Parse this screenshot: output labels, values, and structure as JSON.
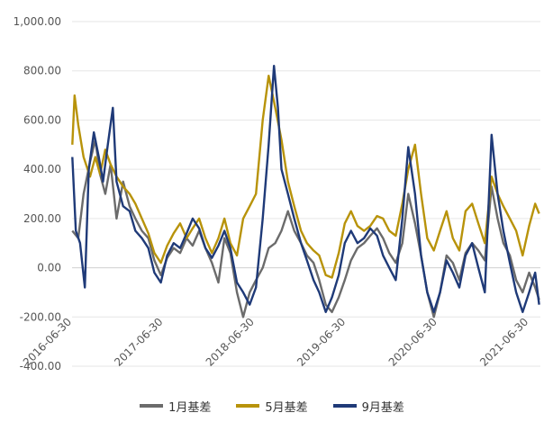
{
  "chart_data": {
    "type": "line",
    "title": "",
    "xlabel": "",
    "ylabel": "",
    "ylim": [
      -400,
      1000
    ],
    "yticks": [
      1000,
      800,
      600,
      400,
      200,
      0,
      -200,
      -400
    ],
    "ytick_labels": [
      "1,000.00",
      "800.00",
      "600.00",
      "400.00",
      "200.00",
      "0.00",
      "-200.00",
      "-400.00"
    ],
    "xlim": [
      "2016-06-30",
      "2021-08-15"
    ],
    "xticks": [
      "2016-06-30",
      "2017-06-30",
      "2018-06-30",
      "2019-06-30",
      "2020-06-30",
      "2021-06-30"
    ],
    "xtick_labels": [
      "2016-06-30",
      "2017-06-30",
      "2018-06-30",
      "2019-06-30",
      "2020-06-30",
      "2021-06-30"
    ],
    "grid": "horizontal",
    "legend_position": "bottom",
    "series": [
      {
        "name": "1月基差",
        "color": "#6b6b6b",
        "points": [
          [
            "2016-07-01",
            150
          ],
          [
            "2016-07-25",
            120
          ],
          [
            "2016-08-15",
            300
          ],
          [
            "2016-09-10",
            430
          ],
          [
            "2016-10-01",
            520
          ],
          [
            "2016-10-20",
            380
          ],
          [
            "2016-11-10",
            300
          ],
          [
            "2016-12-01",
            420
          ],
          [
            "2016-12-25",
            200
          ],
          [
            "2017-01-20",
            350
          ],
          [
            "2017-02-15",
            250
          ],
          [
            "2017-03-10",
            200
          ],
          [
            "2017-04-05",
            150
          ],
          [
            "2017-05-01",
            120
          ],
          [
            "2017-05-25",
            30
          ],
          [
            "2017-06-20",
            -30
          ],
          [
            "2017-07-15",
            40
          ],
          [
            "2017-08-10",
            80
          ],
          [
            "2017-09-05",
            60
          ],
          [
            "2017-10-01",
            120
          ],
          [
            "2017-10-25",
            90
          ],
          [
            "2017-11-20",
            150
          ],
          [
            "2017-12-15",
            80
          ],
          [
            "2018-01-10",
            20
          ],
          [
            "2018-02-05",
            -60
          ],
          [
            "2018-03-01",
            120
          ],
          [
            "2018-03-25",
            60
          ],
          [
            "2018-04-20",
            -100
          ],
          [
            "2018-05-15",
            -200
          ],
          [
            "2018-06-10",
            -100
          ],
          [
            "2018-07-05",
            -50
          ],
          [
            "2018-08-01",
            0
          ],
          [
            "2018-08-25",
            80
          ],
          [
            "2018-09-20",
            100
          ],
          [
            "2018-10-15",
            150
          ],
          [
            "2018-11-10",
            230
          ],
          [
            "2018-12-05",
            150
          ],
          [
            "2019-01-01",
            100
          ],
          [
            "2019-01-25",
            50
          ],
          [
            "2019-02-20",
            20
          ],
          [
            "2019-03-15",
            -50
          ],
          [
            "2019-04-10",
            -150
          ],
          [
            "2019-05-05",
            -180
          ],
          [
            "2019-06-01",
            -120
          ],
          [
            "2019-06-25",
            -50
          ],
          [
            "2019-07-20",
            30
          ],
          [
            "2019-08-15",
            80
          ],
          [
            "2019-09-10",
            100
          ],
          [
            "2019-10-05",
            130
          ],
          [
            "2019-11-01",
            160
          ],
          [
            "2019-11-25",
            120
          ],
          [
            "2019-12-20",
            60
          ],
          [
            "2020-01-15",
            20
          ],
          [
            "2020-02-10",
            100
          ],
          [
            "2020-03-05",
            300
          ],
          [
            "2020-04-01",
            180
          ],
          [
            "2020-04-25",
            50
          ],
          [
            "2020-05-20",
            -100
          ],
          [
            "2020-06-15",
            -200
          ],
          [
            "2020-07-10",
            -100
          ],
          [
            "2020-08-05",
            50
          ],
          [
            "2020-08-30",
            20
          ],
          [
            "2020-09-25",
            -50
          ],
          [
            "2020-10-20",
            60
          ],
          [
            "2020-11-15",
            100
          ],
          [
            "2020-12-10",
            70
          ],
          [
            "2021-01-05",
            30
          ],
          [
            "2021-02-01",
            330
          ],
          [
            "2021-02-25",
            200
          ],
          [
            "2021-03-20",
            100
          ],
          [
            "2021-04-15",
            50
          ],
          [
            "2021-05-10",
            -50
          ],
          [
            "2021-06-05",
            -100
          ],
          [
            "2021-07-01",
            -20
          ],
          [
            "2021-07-25",
            -80
          ],
          [
            "2021-08-10",
            -130
          ]
        ]
      },
      {
        "name": "5月基差",
        "color": "#b8930a",
        "points": [
          [
            "2016-07-01",
            500
          ],
          [
            "2016-07-10",
            700
          ],
          [
            "2016-07-25",
            580
          ],
          [
            "2016-08-15",
            450
          ],
          [
            "2016-09-10",
            370
          ],
          [
            "2016-10-01",
            450
          ],
          [
            "2016-10-20",
            380
          ],
          [
            "2016-11-10",
            480
          ],
          [
            "2016-12-01",
            420
          ],
          [
            "2016-12-25",
            370
          ],
          [
            "2017-01-20",
            330
          ],
          [
            "2017-02-15",
            300
          ],
          [
            "2017-03-10",
            260
          ],
          [
            "2017-04-05",
            200
          ],
          [
            "2017-05-01",
            140
          ],
          [
            "2017-05-25",
            60
          ],
          [
            "2017-06-20",
            20
          ],
          [
            "2017-07-15",
            90
          ],
          [
            "2017-08-10",
            140
          ],
          [
            "2017-09-05",
            180
          ],
          [
            "2017-10-01",
            120
          ],
          [
            "2017-10-25",
            160
          ],
          [
            "2017-11-20",
            200
          ],
          [
            "2017-12-15",
            120
          ],
          [
            "2018-01-10",
            60
          ],
          [
            "2018-02-05",
            120
          ],
          [
            "2018-03-01",
            200
          ],
          [
            "2018-03-25",
            100
          ],
          [
            "2018-04-20",
            50
          ],
          [
            "2018-05-15",
            200
          ],
          [
            "2018-06-10",
            250
          ],
          [
            "2018-07-05",
            300
          ],
          [
            "2018-08-01",
            600
          ],
          [
            "2018-08-25",
            780
          ],
          [
            "2018-09-20",
            650
          ],
          [
            "2018-10-15",
            520
          ],
          [
            "2018-11-10",
            350
          ],
          [
            "2018-12-05",
            250
          ],
          [
            "2019-01-01",
            150
          ],
          [
            "2019-01-25",
            100
          ],
          [
            "2019-02-20",
            70
          ],
          [
            "2019-03-15",
            50
          ],
          [
            "2019-04-10",
            -30
          ],
          [
            "2019-05-05",
            -40
          ],
          [
            "2019-06-01",
            60
          ],
          [
            "2019-06-25",
            180
          ],
          [
            "2019-07-20",
            230
          ],
          [
            "2019-08-15",
            170
          ],
          [
            "2019-09-10",
            150
          ],
          [
            "2019-10-05",
            170
          ],
          [
            "2019-11-01",
            210
          ],
          [
            "2019-11-25",
            200
          ],
          [
            "2019-12-20",
            150
          ],
          [
            "2020-01-15",
            130
          ],
          [
            "2020-02-10",
            260
          ],
          [
            "2020-03-05",
            400
          ],
          [
            "2020-04-01",
            500
          ],
          [
            "2020-04-25",
            300
          ],
          [
            "2020-05-20",
            120
          ],
          [
            "2020-06-15",
            70
          ],
          [
            "2020-07-10",
            150
          ],
          [
            "2020-08-05",
            230
          ],
          [
            "2020-08-30",
            120
          ],
          [
            "2020-09-25",
            70
          ],
          [
            "2020-10-20",
            230
          ],
          [
            "2020-11-15",
            260
          ],
          [
            "2020-12-10",
            180
          ],
          [
            "2021-01-05",
            100
          ],
          [
            "2021-02-01",
            370
          ],
          [
            "2021-02-25",
            300
          ],
          [
            "2021-03-20",
            250
          ],
          [
            "2021-04-15",
            200
          ],
          [
            "2021-05-10",
            150
          ],
          [
            "2021-06-05",
            50
          ],
          [
            "2021-07-01",
            170
          ],
          [
            "2021-07-25",
            260
          ],
          [
            "2021-08-10",
            220
          ]
        ]
      },
      {
        "name": "9月基差",
        "color": "#1f3a78",
        "points": [
          [
            "2016-07-01",
            450
          ],
          [
            "2016-07-15",
            150
          ],
          [
            "2016-08-01",
            100
          ],
          [
            "2016-08-20",
            -80
          ],
          [
            "2016-09-05",
            400
          ],
          [
            "2016-09-25",
            550
          ],
          [
            "2016-10-15",
            450
          ],
          [
            "2016-11-01",
            350
          ],
          [
            "2016-11-20",
            500
          ],
          [
            "2016-12-10",
            650
          ],
          [
            "2016-12-25",
            350
          ],
          [
            "2017-01-20",
            250
          ],
          [
            "2017-02-15",
            230
          ],
          [
            "2017-03-10",
            150
          ],
          [
            "2017-04-05",
            120
          ],
          [
            "2017-05-01",
            80
          ],
          [
            "2017-05-25",
            -20
          ],
          [
            "2017-06-20",
            -60
          ],
          [
            "2017-07-15",
            50
          ],
          [
            "2017-08-10",
            100
          ],
          [
            "2017-09-05",
            80
          ],
          [
            "2017-10-01",
            140
          ],
          [
            "2017-10-25",
            200
          ],
          [
            "2017-11-20",
            160
          ],
          [
            "2017-12-15",
            80
          ],
          [
            "2018-01-10",
            40
          ],
          [
            "2018-02-05",
            90
          ],
          [
            "2018-03-01",
            150
          ],
          [
            "2018-03-25",
            80
          ],
          [
            "2018-04-20",
            -60
          ],
          [
            "2018-05-15",
            -100
          ],
          [
            "2018-06-10",
            -150
          ],
          [
            "2018-07-05",
            -80
          ],
          [
            "2018-08-01",
            200
          ],
          [
            "2018-08-25",
            500
          ],
          [
            "2018-09-15",
            820
          ],
          [
            "2018-10-01",
            650
          ],
          [
            "2018-10-15",
            400
          ],
          [
            "2018-11-10",
            300
          ],
          [
            "2018-12-05",
            200
          ],
          [
            "2019-01-01",
            100
          ],
          [
            "2019-01-25",
            30
          ],
          [
            "2019-02-20",
            -50
          ],
          [
            "2019-03-15",
            -100
          ],
          [
            "2019-04-10",
            -180
          ],
          [
            "2019-05-05",
            -120
          ],
          [
            "2019-06-01",
            -30
          ],
          [
            "2019-06-25",
            100
          ],
          [
            "2019-07-20",
            150
          ],
          [
            "2019-08-15",
            100
          ],
          [
            "2019-09-10",
            120
          ],
          [
            "2019-10-05",
            160
          ],
          [
            "2019-11-01",
            130
          ],
          [
            "2019-11-25",
            50
          ],
          [
            "2019-12-20",
            0
          ],
          [
            "2020-01-15",
            -50
          ],
          [
            "2020-02-10",
            200
          ],
          [
            "2020-03-05",
            490
          ],
          [
            "2020-04-01",
            300
          ],
          [
            "2020-04-25",
            50
          ],
          [
            "2020-05-20",
            -100
          ],
          [
            "2020-06-15",
            -180
          ],
          [
            "2020-07-10",
            -100
          ],
          [
            "2020-08-05",
            30
          ],
          [
            "2020-08-30",
            -20
          ],
          [
            "2020-09-25",
            -80
          ],
          [
            "2020-10-20",
            50
          ],
          [
            "2020-11-15",
            100
          ],
          [
            "2020-12-10",
            0
          ],
          [
            "2021-01-05",
            -100
          ],
          [
            "2021-02-01",
            540
          ],
          [
            "2021-02-25",
            300
          ],
          [
            "2021-03-20",
            150
          ],
          [
            "2021-04-15",
            20
          ],
          [
            "2021-05-10",
            -100
          ],
          [
            "2021-06-05",
            -180
          ],
          [
            "2021-07-01",
            -100
          ],
          [
            "2021-07-25",
            -20
          ],
          [
            "2021-08-10",
            -150
          ]
        ]
      }
    ]
  }
}
